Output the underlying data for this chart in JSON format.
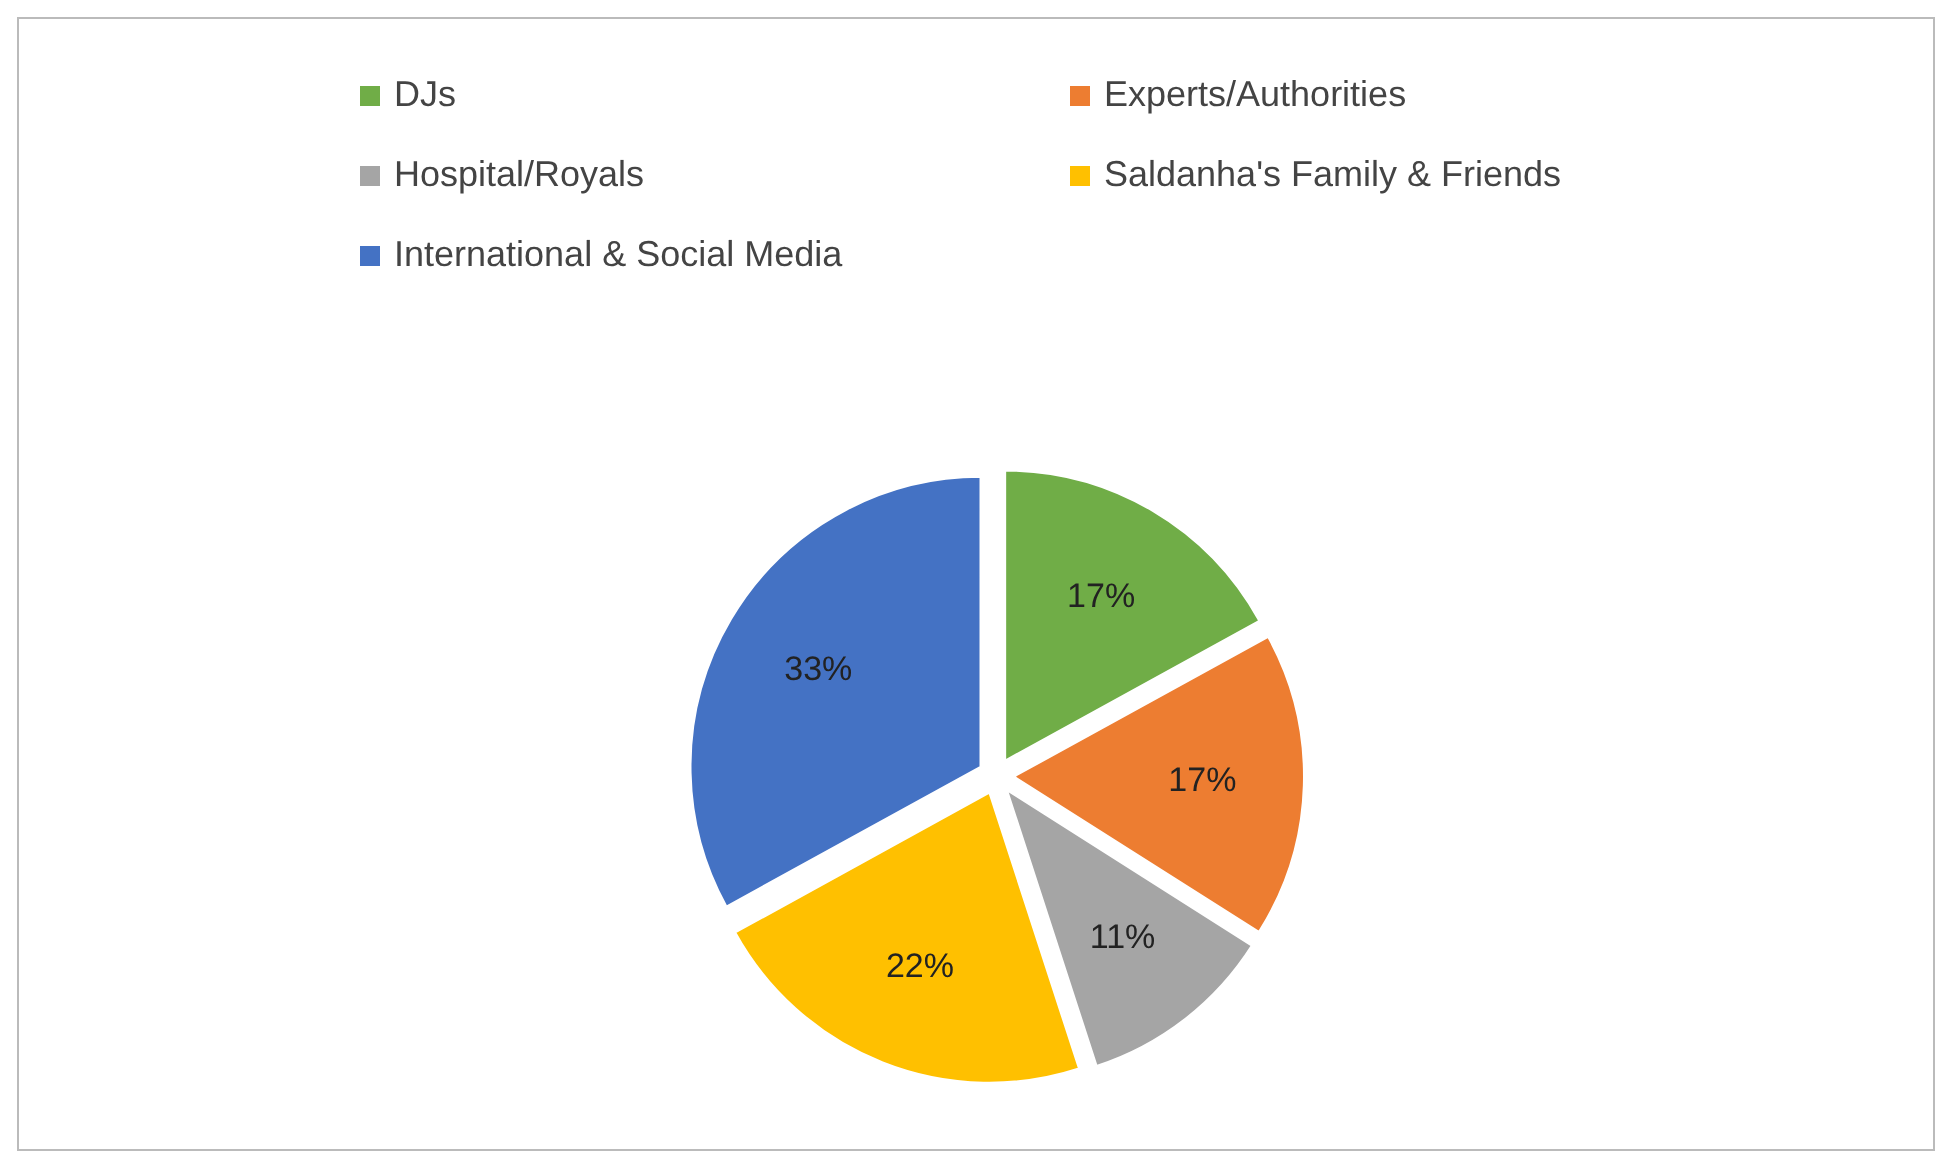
{
  "chart_data": {
    "type": "pie",
    "categories": [
      "DJs",
      "Experts/Authorities",
      "Hospital/Royals",
      "Saldanha's Family & Friends",
      "International & Social Media"
    ],
    "values": [
      17,
      17,
      11,
      22,
      33
    ],
    "colors": [
      "#70ad47",
      "#ed7d31",
      "#a5a5a5",
      "#ffc000",
      "#4472c4"
    ],
    "value_labels": [
      "17%",
      "17%",
      "11%",
      "22%",
      "33%"
    ],
    "legend": "top"
  }
}
